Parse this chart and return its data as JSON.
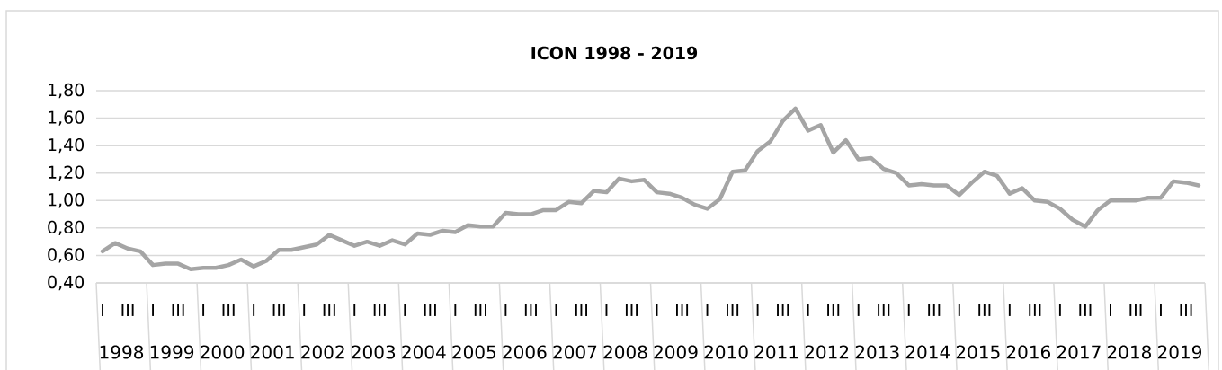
{
  "chart_data": {
    "type": "line",
    "title": "ICON 1998 - 2019",
    "categories": [
      "I",
      null,
      "III",
      null,
      "I",
      null,
      "III",
      null,
      "I",
      null,
      "III",
      null,
      "I",
      null,
      "III",
      null,
      "I",
      null,
      "III",
      null,
      "I",
      null,
      "III",
      null,
      "I",
      null,
      "III",
      null,
      "I",
      null,
      "III",
      null,
      "I",
      null,
      "III",
      null,
      "I",
      null,
      "III",
      null,
      "I",
      null,
      "III",
      null,
      "I",
      null,
      "III",
      null,
      "I",
      null,
      "III",
      null,
      "I",
      null,
      "III",
      null,
      "I",
      null,
      "III",
      null,
      "I",
      null,
      "III",
      null,
      "I",
      null,
      "III",
      null,
      "I",
      null,
      "III",
      null,
      "I",
      null,
      "III",
      null,
      "I",
      null,
      "III",
      null,
      "I",
      null,
      "III",
      null,
      "I",
      null,
      "III",
      null
    ],
    "series": [
      {
        "color": "#a5a5a5",
        "values": [
          0.63,
          0.69,
          0.65,
          0.63,
          0.53,
          0.54,
          0.54,
          0.5,
          0.51,
          0.51,
          0.53,
          0.57,
          0.52,
          0.56,
          0.64,
          0.64,
          0.66,
          0.68,
          0.75,
          0.71,
          0.67,
          0.7,
          0.67,
          0.71,
          0.68,
          0.76,
          0.75,
          0.78,
          0.77,
          0.82,
          0.81,
          0.81,
          0.91,
          0.9,
          0.9,
          0.93,
          0.93,
          0.99,
          0.98,
          1.07,
          1.06,
          1.16,
          1.14,
          1.15,
          1.06,
          1.05,
          1.02,
          0.97,
          0.94,
          1.01,
          1.21,
          1.22,
          1.36,
          1.43,
          1.58,
          1.67,
          1.51,
          1.55,
          1.35,
          1.44,
          1.3,
          1.31,
          1.23,
          1.2,
          1.11,
          1.12,
          1.11,
          1.11,
          1.04,
          1.13,
          1.21,
          1.18,
          1.05,
          1.09,
          1.0,
          0.99,
          0.94,
          0.86,
          0.81,
          0.93,
          1.0,
          1.0,
          1.0,
          1.02,
          1.02,
          1.14,
          1.13,
          1.11
        ]
      }
    ],
    "annotations": [
      "1998",
      "1999",
      "2000",
      "2001",
      "2002",
      "2003",
      "2004",
      "2005",
      "2006",
      "2007",
      "2008",
      "2009",
      "2010",
      "2011",
      "2012",
      "2013",
      "2014",
      "2015",
      "2016",
      "2017",
      "2018",
      "2019"
    ],
    "ylim": [
      0.4,
      1.8
    ],
    "yticks": [
      {
        "value": 0.4,
        "label": "0,40"
      },
      {
        "value": 0.6,
        "label": "0,60"
      },
      {
        "value": 0.8,
        "label": "0,80"
      },
      {
        "value": 1.0,
        "label": "1,00"
      },
      {
        "value": 1.2,
        "label": "1,20"
      },
      {
        "value": 1.4,
        "label": "1,40"
      },
      {
        "value": 1.6,
        "label": "1,60"
      },
      {
        "value": 1.8,
        "label": "1,80"
      }
    ],
    "grid": "y"
  }
}
